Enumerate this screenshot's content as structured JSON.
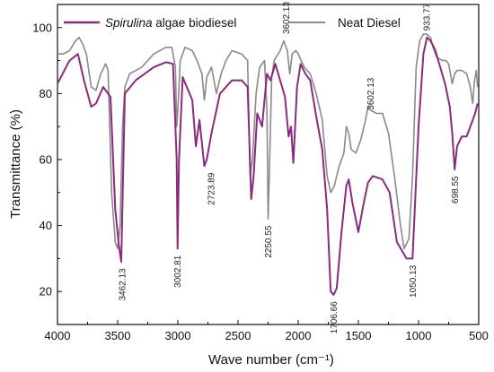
{
  "chart_data": {
    "type": "line",
    "xlabel": "Wave number (cm⁻¹)",
    "ylabel": "Transmittance (%)",
    "xlim": [
      4000,
      500
    ],
    "ylim": [
      10,
      107
    ],
    "x_reversed": true,
    "x_ticks": [
      4000,
      3500,
      3000,
      2500,
      2000,
      1500,
      1000,
      500
    ],
    "y_ticks": [
      20,
      40,
      60,
      80,
      100
    ],
    "grid": false,
    "legend_position": "top",
    "legend": [
      {
        "name_italic": "Spirulina",
        "name_rest": " algae biodiesel",
        "color": "#8b2b7e"
      },
      {
        "name": "Neat Diesel",
        "color": "#8a8a8a"
      }
    ],
    "series": [
      {
        "name": "Spirulina algae biodiesel",
        "color": "#8b2b7e",
        "points": [
          [
            4000,
            83
          ],
          [
            3900,
            90
          ],
          [
            3830,
            92
          ],
          [
            3780,
            84
          ],
          [
            3720,
            76
          ],
          [
            3680,
            77
          ],
          [
            3620,
            82
          ],
          [
            3560,
            79
          ],
          [
            3520,
            45
          ],
          [
            3490,
            34
          ],
          [
            3470,
            29
          ],
          [
            3440,
            80
          ],
          [
            3350,
            84
          ],
          [
            3200,
            88
          ],
          [
            3100,
            89.5
          ],
          [
            3040,
            89
          ],
          [
            3010,
            60
          ],
          [
            3002,
            33
          ],
          [
            2990,
            60
          ],
          [
            2960,
            85
          ],
          [
            2880,
            78
          ],
          [
            2850,
            64
          ],
          [
            2820,
            72
          ],
          [
            2780,
            58
          ],
          [
            2760,
            60
          ],
          [
            2720,
            68
          ],
          [
            2650,
            80
          ],
          [
            2550,
            84
          ],
          [
            2470,
            84
          ],
          [
            2420,
            82
          ],
          [
            2390,
            48
          ],
          [
            2370,
            55
          ],
          [
            2340,
            74
          ],
          [
            2300,
            70
          ],
          [
            2260,
            86
          ],
          [
            2230,
            84
          ],
          [
            2190,
            89
          ],
          [
            2150,
            84
          ],
          [
            2110,
            79
          ],
          [
            2080,
            67
          ],
          [
            2060,
            70
          ],
          [
            2040,
            59
          ],
          [
            2010,
            82
          ],
          [
            1980,
            89
          ],
          [
            1940,
            86
          ],
          [
            1900,
            84
          ],
          [
            1850,
            73
          ],
          [
            1800,
            63
          ],
          [
            1760,
            45
          ],
          [
            1730,
            20
          ],
          [
            1706,
            19
          ],
          [
            1680,
            21
          ],
          [
            1640,
            38
          ],
          [
            1600,
            52
          ],
          [
            1580,
            54
          ],
          [
            1550,
            47
          ],
          [
            1500,
            38
          ],
          [
            1460,
            46
          ],
          [
            1420,
            53
          ],
          [
            1380,
            55
          ],
          [
            1300,
            54
          ],
          [
            1240,
            50
          ],
          [
            1180,
            35
          ],
          [
            1100,
            30
          ],
          [
            1050,
            30
          ],
          [
            1000,
            70
          ],
          [
            960,
            92
          ],
          [
            930,
            97
          ],
          [
            900,
            96
          ],
          [
            860,
            93
          ],
          [
            820,
            88
          ],
          [
            780,
            83
          ],
          [
            740,
            76
          ],
          [
            720,
            68
          ],
          [
            700,
            57
          ],
          [
            680,
            64
          ],
          [
            640,
            67
          ],
          [
            600,
            67
          ],
          [
            560,
            71
          ],
          [
            530,
            74
          ],
          [
            510,
            77
          ]
        ]
      },
      {
        "name": "Neat Diesel",
        "color": "#8a8a8a",
        "points": [
          [
            4000,
            92
          ],
          [
            3950,
            92
          ],
          [
            3900,
            93
          ],
          [
            3850,
            96
          ],
          [
            3820,
            97
          ],
          [
            3790,
            95
          ],
          [
            3760,
            92
          ],
          [
            3720,
            82
          ],
          [
            3680,
            81
          ],
          [
            3640,
            86
          ],
          [
            3600,
            89
          ],
          [
            3580,
            87
          ],
          [
            3550,
            50
          ],
          [
            3520,
            35
          ],
          [
            3500,
            33
          ],
          [
            3480,
            40
          ],
          [
            3460,
            70
          ],
          [
            3440,
            82
          ],
          [
            3400,
            86
          ],
          [
            3300,
            88
          ],
          [
            3200,
            92
          ],
          [
            3100,
            94
          ],
          [
            3050,
            94
          ],
          [
            3020,
            88
          ],
          [
            3010,
            70
          ],
          [
            3000,
            75
          ],
          [
            2980,
            90
          ],
          [
            2940,
            94
          ],
          [
            2880,
            93
          ],
          [
            2840,
            90
          ],
          [
            2800,
            86
          ],
          [
            2780,
            78
          ],
          [
            2760,
            85
          ],
          [
            2720,
            88
          ],
          [
            2680,
            80
          ],
          [
            2640,
            86
          ],
          [
            2600,
            90
          ],
          [
            2550,
            93
          ],
          [
            2470,
            92
          ],
          [
            2420,
            90
          ],
          [
            2400,
            55
          ],
          [
            2380,
            60
          ],
          [
            2350,
            80
          ],
          [
            2320,
            88
          ],
          [
            2280,
            90
          ],
          [
            2260,
            75
          ],
          [
            2250,
            42
          ],
          [
            2240,
            55
          ],
          [
            2220,
            85
          ],
          [
            2200,
            90
          ],
          [
            2150,
            93
          ],
          [
            2120,
            96
          ],
          [
            2090,
            93
          ],
          [
            2070,
            86
          ],
          [
            2050,
            92
          ],
          [
            2020,
            93
          ],
          [
            2000,
            92
          ],
          [
            1950,
            88
          ],
          [
            1900,
            86
          ],
          [
            1850,
            80
          ],
          [
            1800,
            72
          ],
          [
            1760,
            55
          ],
          [
            1730,
            50
          ],
          [
            1700,
            52
          ],
          [
            1660,
            58
          ],
          [
            1620,
            62
          ],
          [
            1600,
            70
          ],
          [
            1580,
            68
          ],
          [
            1560,
            63
          ],
          [
            1520,
            62
          ],
          [
            1480,
            66
          ],
          [
            1440,
            72
          ],
          [
            1420,
            76
          ],
          [
            1400,
            75
          ],
          [
            1350,
            74
          ],
          [
            1300,
            74
          ],
          [
            1250,
            68
          ],
          [
            1200,
            55
          ],
          [
            1150,
            40
          ],
          [
            1120,
            33
          ],
          [
            1080,
            36
          ],
          [
            1050,
            55
          ],
          [
            1020,
            88
          ],
          [
            990,
            96
          ],
          [
            960,
            98
          ],
          [
            933,
            98
          ],
          [
            900,
            97
          ],
          [
            880,
            94
          ],
          [
            850,
            91
          ],
          [
            800,
            90
          ],
          [
            770,
            90
          ],
          [
            750,
            89
          ],
          [
            720,
            83
          ],
          [
            700,
            86
          ],
          [
            680,
            87
          ],
          [
            640,
            87
          ],
          [
            600,
            86
          ],
          [
            570,
            82
          ],
          [
            550,
            77
          ],
          [
            535,
            84
          ],
          [
            520,
            87
          ],
          [
            510,
            82
          ]
        ]
      }
    ],
    "annotations": [
      {
        "text": "3462.13",
        "x": 3462,
        "y": 27,
        "anchor": "end"
      },
      {
        "text": "3002.81",
        "x": 3002,
        "y": 31,
        "anchor": "end"
      },
      {
        "text": "2723.89",
        "x": 2723,
        "y": 56,
        "anchor": "end"
      },
      {
        "text": "2250.55",
        "x": 2250,
        "y": 40,
        "anchor": "end"
      },
      {
        "text": "3602.13",
        "x": 2100,
        "y": 98,
        "anchor": "start"
      },
      {
        "text": "1706.66",
        "x": 1706,
        "y": 17,
        "anchor": "end"
      },
      {
        "text": "3602.13",
        "x": 1400,
        "y": 75,
        "anchor": "start"
      },
      {
        "text": "1050.13",
        "x": 1050,
        "y": 28,
        "anchor": "end"
      },
      {
        "text": "933.77",
        "x": 933,
        "y": 99,
        "anchor": "start"
      },
      {
        "text": "698.55",
        "x": 698,
        "y": 55,
        "anchor": "end"
      }
    ]
  }
}
